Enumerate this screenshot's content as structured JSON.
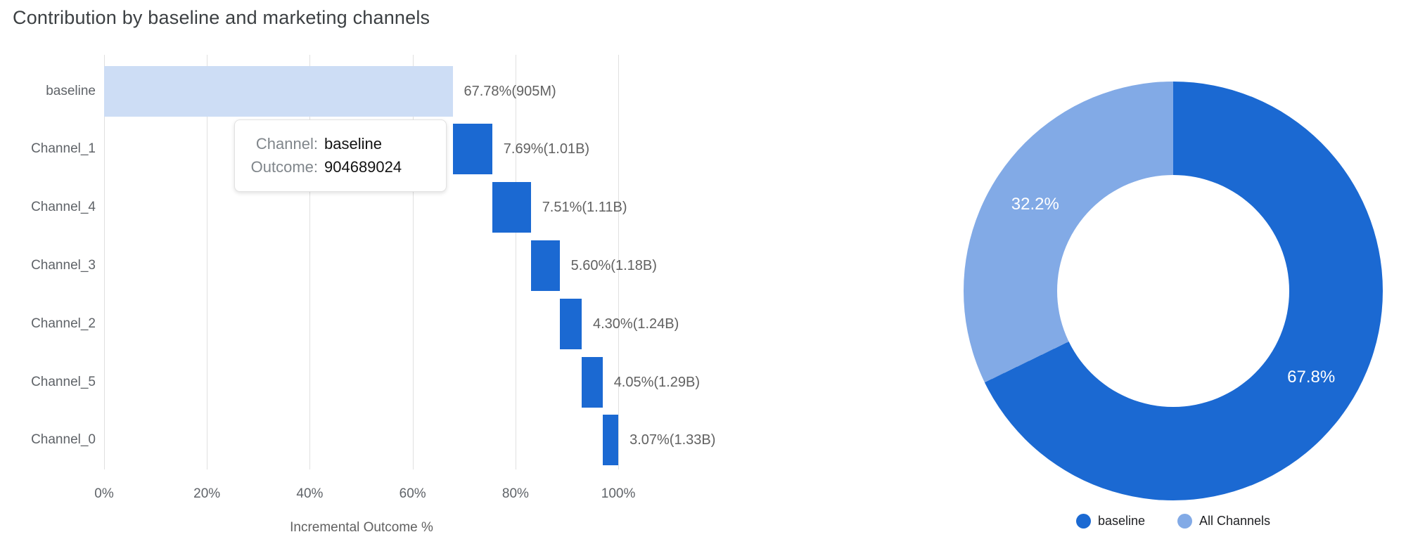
{
  "title": "Contribution by baseline and marketing channels",
  "colors": {
    "channel_bar_blue": "#1b69d2",
    "baseline_bar_fill": "#cdddf5",
    "donut_dark_blue": "#1b69d2",
    "donut_light_blue": "#82aae6",
    "gridline": "#e0e0e0",
    "title_text": "#3c4043",
    "axis_text": "#5f6368",
    "value_text": "#616161"
  },
  "bar_chart": {
    "x_axis_title": "Incremental Outcome %",
    "x_ticks": [
      {
        "pct": 0,
        "label": "0%"
      },
      {
        "pct": 20,
        "label": "20%"
      },
      {
        "pct": 40,
        "label": "40%"
      },
      {
        "pct": 60,
        "label": "60%"
      },
      {
        "pct": 80,
        "label": "80%"
      },
      {
        "pct": 100,
        "label": "100%"
      }
    ],
    "bars": [
      {
        "name": "baseline",
        "pct": 67.78,
        "value_label": "67.78%(905M)",
        "kind": "baseline"
      },
      {
        "name": "Channel_1",
        "pct": 7.69,
        "value_label": "7.69%(1.01B)",
        "kind": "channel"
      },
      {
        "name": "Channel_4",
        "pct": 7.51,
        "value_label": "7.51%(1.11B)",
        "kind": "channel"
      },
      {
        "name": "Channel_3",
        "pct": 5.6,
        "value_label": "5.60%(1.18B)",
        "kind": "channel"
      },
      {
        "name": "Channel_2",
        "pct": 4.3,
        "value_label": "4.30%(1.24B)",
        "kind": "channel"
      },
      {
        "name": "Channel_5",
        "pct": 4.05,
        "value_label": "4.05%(1.29B)",
        "kind": "channel"
      },
      {
        "name": "Channel_0",
        "pct": 3.07,
        "value_label": "3.07%(1.33B)",
        "kind": "channel"
      }
    ]
  },
  "tooltip": {
    "channel_label": "Channel:",
    "channel_value": "baseline",
    "outcome_label": "Outcome:",
    "outcome_value": "904689024"
  },
  "donut": {
    "slices": [
      {
        "label": "baseline",
        "pct": 67.8,
        "display": "67.8%"
      },
      {
        "label": "All Channels",
        "pct": 32.2,
        "display": "32.2%"
      }
    ]
  },
  "chart_data": [
    {
      "type": "bar",
      "subtype": "horizontal-waterfall",
      "title": "Contribution by baseline and marketing channels",
      "categories": [
        "baseline",
        "Channel_1",
        "Channel_4",
        "Channel_3",
        "Channel_2",
        "Channel_5",
        "Channel_0"
      ],
      "values": [
        67.78,
        7.69,
        7.51,
        5.6,
        4.3,
        4.05,
        3.07
      ],
      "data_labels": [
        "67.78%(905M)",
        "7.69%(1.01B)",
        "7.51%(1.11B)",
        "5.60%(1.18B)",
        "4.30%(1.24B)",
        "4.05%(1.29B)",
        "3.07%(1.33B)"
      ],
      "cumulative_outcome_labels": [
        "905M",
        "1.01B",
        "1.11B",
        "1.18B",
        "1.24B",
        "1.29B",
        "1.33B"
      ],
      "xlabel": "Incremental Outcome %",
      "ylabel": "",
      "xlim": [
        0,
        100
      ],
      "x_tick_labels": [
        "0%",
        "20%",
        "40%",
        "60%",
        "80%",
        "100%"
      ],
      "grid": true,
      "tooltip_shown": {
        "Channel": "baseline",
        "Outcome": 904689024
      }
    },
    {
      "type": "pie",
      "subtype": "donut",
      "labels": [
        "baseline",
        "All Channels"
      ],
      "values": [
        67.8,
        32.2
      ],
      "slice_text": [
        "67.8%",
        "32.2%"
      ],
      "legend_position": "bottom",
      "legend_entries": [
        "baseline",
        "All Channels"
      ]
    }
  ]
}
